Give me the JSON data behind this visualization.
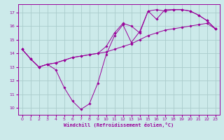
{
  "title": "",
  "xlabel": "Windchill (Refroidissement éolien,°C)",
  "ylabel": "",
  "bg_color": "#cceaea",
  "grid_color": "#aacccc",
  "line_color": "#990099",
  "xlim": [
    -0.5,
    23.5
  ],
  "ylim": [
    9.5,
    17.6
  ],
  "yticks": [
    10,
    11,
    12,
    13,
    14,
    15,
    16,
    17
  ],
  "xticks": [
    0,
    1,
    2,
    3,
    4,
    5,
    6,
    7,
    8,
    9,
    10,
    11,
    12,
    13,
    14,
    15,
    16,
    17,
    18,
    19,
    20,
    21,
    22,
    23
  ],
  "series1": [
    14.3,
    13.6,
    13.0,
    13.2,
    12.8,
    11.5,
    10.5,
    9.9,
    10.3,
    11.8,
    13.9,
    15.3,
    16.1,
    14.8,
    15.6,
    17.1,
    17.2,
    17.1,
    17.2,
    17.2,
    17.1,
    16.8,
    16.4,
    15.8
  ],
  "series2": [
    14.3,
    13.6,
    13.0,
    13.2,
    13.3,
    13.5,
    13.7,
    13.8,
    13.9,
    14.0,
    14.1,
    14.3,
    14.5,
    14.7,
    15.0,
    15.3,
    15.5,
    15.7,
    15.8,
    15.9,
    16.0,
    16.1,
    16.2,
    15.8
  ],
  "series3": [
    14.3,
    13.6,
    13.0,
    13.2,
    13.3,
    13.5,
    13.7,
    13.8,
    13.9,
    14.0,
    14.5,
    15.5,
    16.2,
    16.0,
    15.5,
    17.1,
    16.5,
    17.2,
    17.2,
    17.2,
    17.1,
    16.8,
    16.4,
    15.8
  ]
}
